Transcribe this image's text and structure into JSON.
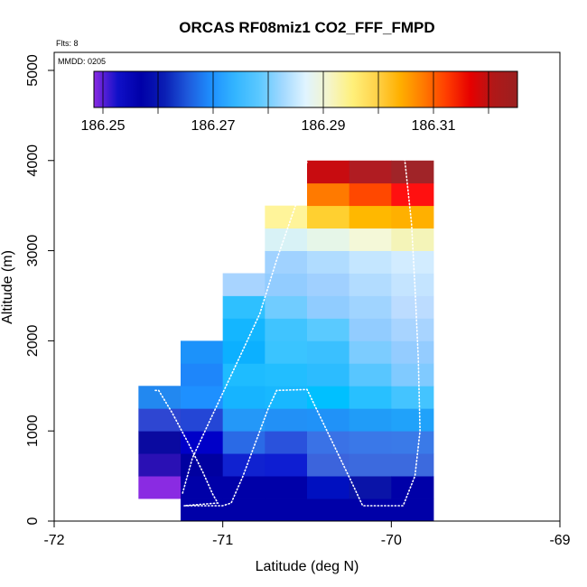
{
  "chart_data": {
    "type": "heatmap",
    "title": "ORCAS RF08miz1 CO2_FFF_FMPD",
    "flights_label": "Flts: 8",
    "date_label": "MMDD: 0205",
    "xlabel": "Latitude (deg N)",
    "ylabel": "Altitude (m)",
    "xlim": [
      -72,
      -69
    ],
    "ylim": [
      0,
      5200
    ],
    "xticks": [
      -72,
      -71,
      -70,
      -69
    ],
    "yticks": [
      0,
      1000,
      2000,
      3000,
      4000,
      5000
    ],
    "colorbar": {
      "ticks": [
        186.25,
        186.27,
        186.29,
        186.31
      ],
      "tick_labels": [
        "186.25",
        "186.27",
        "186.29",
        "186.31"
      ],
      "colors": [
        "#8a2be2",
        "#1010c8",
        "#0000a8",
        "#0a1eb4",
        "#1e5adc",
        "#1e90ff",
        "#33b5ff",
        "#5ac8ff",
        "#a0d8ff",
        "#e0f4ff",
        "#f5f5c8",
        "#fff07a",
        "#ffd24a",
        "#ffb000",
        "#ff7a00",
        "#ff3c00",
        "#e60000",
        "#b01818",
        "#9a2020"
      ]
    },
    "cell_width_deg": 0.25,
    "cell_height_m": 250,
    "cells": [
      {
        "x": -71.5,
        "y": 250,
        "color": "#8a2be2"
      },
      {
        "x": -71.5,
        "y": 500,
        "color": "#2a10b4"
      },
      {
        "x": -71.5,
        "y": 750,
        "color": "#0a0aa0"
      },
      {
        "x": -71.5,
        "y": 1000,
        "color": "#2e46d2"
      },
      {
        "x": -71.5,
        "y": 1250,
        "color": "#2288f0"
      },
      {
        "x": -71.25,
        "y": 0,
        "color": "#0000a8"
      },
      {
        "x": -71.25,
        "y": 250,
        "color": "#0000a8"
      },
      {
        "x": -71.25,
        "y": 500,
        "color": "#0000a0"
      },
      {
        "x": -71.25,
        "y": 750,
        "color": "#0000c8"
      },
      {
        "x": -71.25,
        "y": 1000,
        "color": "#2446d6"
      },
      {
        "x": -71.25,
        "y": 1250,
        "color": "#1e90ff"
      },
      {
        "x": -71.25,
        "y": 1500,
        "color": "#1e86fa"
      },
      {
        "x": -71.25,
        "y": 1750,
        "color": "#1c92fa"
      },
      {
        "x": -71.0,
        "y": 0,
        "color": "#0000a8"
      },
      {
        "x": -71.0,
        "y": 250,
        "color": "#0000a8"
      },
      {
        "x": -71.0,
        "y": 500,
        "color": "#1022d0"
      },
      {
        "x": -71.0,
        "y": 750,
        "color": "#2a6ae6"
      },
      {
        "x": -71.0,
        "y": 1000,
        "color": "#2498f8"
      },
      {
        "x": -71.0,
        "y": 1250,
        "color": "#16b4ff"
      },
      {
        "x": -71.0,
        "y": 1500,
        "color": "#1ebcff"
      },
      {
        "x": -71.0,
        "y": 1750,
        "color": "#0cb0ff"
      },
      {
        "x": -71.0,
        "y": 2000,
        "color": "#14b6ff"
      },
      {
        "x": -71.0,
        "y": 2250,
        "color": "#2ec0ff"
      },
      {
        "x": -71.0,
        "y": 2500,
        "color": "#a8d4ff"
      },
      {
        "x": -70.75,
        "y": 0,
        "color": "#0000a8"
      },
      {
        "x": -70.75,
        "y": 250,
        "color": "#0000a8"
      },
      {
        "x": -70.75,
        "y": 500,
        "color": "#0e1ed2"
      },
      {
        "x": -70.75,
        "y": 750,
        "color": "#2a52dc"
      },
      {
        "x": -70.75,
        "y": 1000,
        "color": "#2290f6"
      },
      {
        "x": -70.75,
        "y": 1250,
        "color": "#18b8ff"
      },
      {
        "x": -70.75,
        "y": 1500,
        "color": "#22beff"
      },
      {
        "x": -70.75,
        "y": 1750,
        "color": "#3ac4ff"
      },
      {
        "x": -70.75,
        "y": 2000,
        "color": "#40c4ff"
      },
      {
        "x": -70.75,
        "y": 2250,
        "color": "#70ccff"
      },
      {
        "x": -70.75,
        "y": 2500,
        "color": "#92ccff"
      },
      {
        "x": -70.75,
        "y": 2750,
        "color": "#a0d2ff"
      },
      {
        "x": -70.75,
        "y": 3000,
        "color": "#d8f2f6"
      },
      {
        "x": -70.75,
        "y": 3250,
        "color": "#fff49a"
      },
      {
        "x": -70.5,
        "y": 0,
        "color": "#0000a8"
      },
      {
        "x": -70.5,
        "y": 250,
        "color": "#0010c0"
      },
      {
        "x": -70.5,
        "y": 500,
        "color": "#3c64dc"
      },
      {
        "x": -70.5,
        "y": 750,
        "color": "#3a72e6"
      },
      {
        "x": -70.5,
        "y": 1000,
        "color": "#2092f8"
      },
      {
        "x": -70.5,
        "y": 1250,
        "color": "#00c0ff"
      },
      {
        "x": -70.5,
        "y": 1500,
        "color": "#2cbcff"
      },
      {
        "x": -70.5,
        "y": 1750,
        "color": "#3ac0ff"
      },
      {
        "x": -70.5,
        "y": 2000,
        "color": "#5acaff"
      },
      {
        "x": -70.5,
        "y": 2250,
        "color": "#90ccff"
      },
      {
        "x": -70.5,
        "y": 2500,
        "color": "#a0d0ff"
      },
      {
        "x": -70.5,
        "y": 2750,
        "color": "#b0dcff"
      },
      {
        "x": -70.5,
        "y": 3000,
        "color": "#e6f6e8"
      },
      {
        "x": -70.5,
        "y": 3250,
        "color": "#ffd030"
      },
      {
        "x": -70.5,
        "y": 3500,
        "color": "#ff7a00"
      },
      {
        "x": -70.5,
        "y": 3750,
        "color": "#c80c10"
      },
      {
        "x": -70.25,
        "y": 0,
        "color": "#0000a8"
      },
      {
        "x": -70.25,
        "y": 250,
        "color": "#0a14a8"
      },
      {
        "x": -70.25,
        "y": 500,
        "color": "#3c6ade"
      },
      {
        "x": -70.25,
        "y": 750,
        "color": "#3a78e8"
      },
      {
        "x": -70.25,
        "y": 1000,
        "color": "#209cf8"
      },
      {
        "x": -70.25,
        "y": 1250,
        "color": "#28c0ff"
      },
      {
        "x": -70.25,
        "y": 1500,
        "color": "#58c6ff"
      },
      {
        "x": -70.25,
        "y": 1750,
        "color": "#7cccff"
      },
      {
        "x": -70.25,
        "y": 2000,
        "color": "#92ccff"
      },
      {
        "x": -70.25,
        "y": 2250,
        "color": "#a0d4ff"
      },
      {
        "x": -70.25,
        "y": 2500,
        "color": "#b2dcff"
      },
      {
        "x": -70.25,
        "y": 2750,
        "color": "#c4e6ff"
      },
      {
        "x": -70.25,
        "y": 3000,
        "color": "#f4f8d8"
      },
      {
        "x": -70.25,
        "y": 3250,
        "color": "#ffb800"
      },
      {
        "x": -70.25,
        "y": 3500,
        "color": "#ff4800"
      },
      {
        "x": -70.25,
        "y": 3750,
        "color": "#b01c22"
      },
      {
        "x": -70.0,
        "y": 0,
        "color": "#0000a8"
      },
      {
        "x": -70.0,
        "y": 250,
        "color": "#0000a8"
      },
      {
        "x": -70.0,
        "y": 500,
        "color": "#3c6ade"
      },
      {
        "x": -70.0,
        "y": 750,
        "color": "#3a7ae8"
      },
      {
        "x": -70.0,
        "y": 1000,
        "color": "#20a2fa"
      },
      {
        "x": -70.0,
        "y": 1250,
        "color": "#44c4ff"
      },
      {
        "x": -70.0,
        "y": 1500,
        "color": "#80caff"
      },
      {
        "x": -70.0,
        "y": 1750,
        "color": "#94ccff"
      },
      {
        "x": -70.0,
        "y": 2000,
        "color": "#a8d4ff"
      },
      {
        "x": -70.0,
        "y": 2250,
        "color": "#bcdcff"
      },
      {
        "x": -70.0,
        "y": 2500,
        "color": "#c4e4ff"
      },
      {
        "x": -70.0,
        "y": 2750,
        "color": "#d2ecff"
      },
      {
        "x": -70.0,
        "y": 3000,
        "color": "#f4f4b8"
      },
      {
        "x": -70.0,
        "y": 3250,
        "color": "#ffb000"
      },
      {
        "x": -70.0,
        "y": 3500,
        "color": "#ff1010"
      },
      {
        "x": -70.0,
        "y": 3750,
        "color": "#a02428"
      }
    ],
    "flight_track": [
      [
        -71.4,
        1450
      ],
      [
        -71.38,
        1450
      ],
      [
        -71.3,
        1200
      ],
      [
        -71.2,
        850
      ],
      [
        -71.12,
        550
      ],
      [
        -71.06,
        300
      ],
      [
        -71.03,
        200
      ],
      [
        -71.23,
        170
      ],
      [
        -71.0,
        170
      ],
      [
        -70.95,
        200
      ],
      [
        -70.88,
        500
      ],
      [
        -70.8,
        900
      ],
      [
        -70.73,
        1250
      ],
      [
        -70.68,
        1450
      ],
      [
        -70.5,
        1460
      ],
      [
        -70.42,
        1150
      ],
      [
        -70.33,
        800
      ],
      [
        -70.24,
        450
      ],
      [
        -70.17,
        170
      ],
      [
        -69.93,
        170
      ],
      [
        -69.86,
        500
      ],
      [
        -69.83,
        1000
      ],
      [
        -69.84,
        1800
      ],
      [
        -69.86,
        2600
      ],
      [
        -69.88,
        3300
      ],
      [
        -69.92,
        4000
      ],
      [
        -69.94,
        4150
      ],
      [
        -70.48,
        4150
      ],
      [
        -70.55,
        3600
      ],
      [
        -70.68,
        2900
      ],
      [
        -70.78,
        2300
      ],
      [
        -70.88,
        1900
      ],
      [
        -70.98,
        1500
      ],
      [
        -71.08,
        1100
      ],
      [
        -71.18,
        700
      ],
      [
        -71.24,
        300
      ]
    ]
  }
}
